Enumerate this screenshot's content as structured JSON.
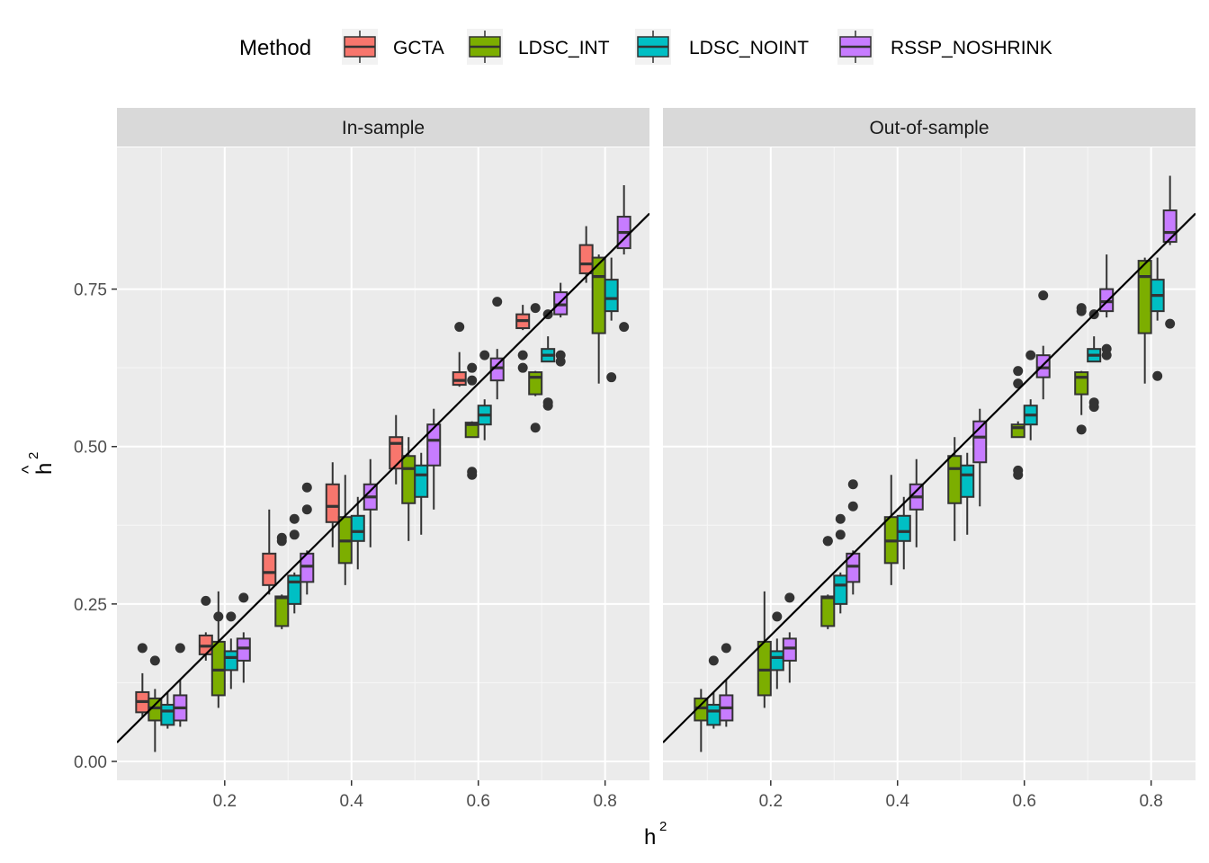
{
  "chart_data": {
    "type": "box",
    "legend": {
      "title": "Method",
      "position": "top",
      "entries": [
        {
          "label": "GCTA",
          "color": "#F8766D"
        },
        {
          "label": "LDSC_INT",
          "color": "#7CAE00"
        },
        {
          "label": "LDSC_NOINT",
          "color": "#00BFC4"
        },
        {
          "label": "RSSP_NOSHRINK",
          "color": "#C77CFF"
        }
      ]
    },
    "xlabel": "h",
    "xlabel_sup": "2",
    "ylabel": "h",
    "ylabel_sup": "2",
    "ylabel_hat": "^",
    "xlim": [
      0.03,
      0.87
    ],
    "ylim": [
      -0.03,
      0.975
    ],
    "x_ticks": [
      0.2,
      0.4,
      0.6,
      0.8
    ],
    "x_tick_labels": [
      "0.2",
      "0.4",
      "0.6",
      "0.8"
    ],
    "y_ticks": [
      0.0,
      0.25,
      0.5,
      0.75
    ],
    "y_tick_labels": [
      "0.00",
      "0.25",
      "0.50",
      "0.75"
    ],
    "reference_line": {
      "intercept": 0,
      "slope": 1
    },
    "grid": true,
    "panels": [
      {
        "title": "In-sample",
        "series": [
          {
            "name": "GCTA",
            "boxes": [
              {
                "x": 0.1,
                "min": 0.07,
                "q1": 0.078,
                "median": 0.095,
                "q3": 0.11,
                "max": 0.14,
                "outliers": [
                  0.18
                ]
              },
              {
                "x": 0.2,
                "min": 0.16,
                "q1": 0.17,
                "median": 0.183,
                "q3": 0.2,
                "max": 0.205,
                "outliers": [
                  0.255
                ]
              },
              {
                "x": 0.3,
                "min": 0.265,
                "q1": 0.28,
                "median": 0.3,
                "q3": 0.33,
                "max": 0.4,
                "outliers": []
              },
              {
                "x": 0.4,
                "min": 0.34,
                "q1": 0.38,
                "median": 0.405,
                "q3": 0.44,
                "max": 0.475,
                "outliers": []
              },
              {
                "x": 0.5,
                "min": 0.44,
                "q1": 0.465,
                "median": 0.505,
                "q3": 0.515,
                "max": 0.55,
                "outliers": []
              },
              {
                "x": 0.6,
                "min": 0.595,
                "q1": 0.598,
                "median": 0.605,
                "q3": 0.618,
                "max": 0.65,
                "outliers": [
                  0.69
                ]
              },
              {
                "x": 0.7,
                "min": 0.685,
                "q1": 0.688,
                "median": 0.7,
                "q3": 0.71,
                "max": 0.725,
                "outliers": [
                  0.645,
                  0.625
                ]
              },
              {
                "x": 0.8,
                "min": 0.76,
                "q1": 0.775,
                "median": 0.79,
                "q3": 0.82,
                "max": 0.85,
                "outliers": []
              }
            ]
          },
          {
            "name": "LDSC_INT",
            "boxes": [
              {
                "x": 0.1,
                "min": 0.015,
                "q1": 0.065,
                "median": 0.085,
                "q3": 0.1,
                "max": 0.115,
                "outliers": [
                  0.16
                ]
              },
              {
                "x": 0.2,
                "min": 0.085,
                "q1": 0.105,
                "median": 0.145,
                "q3": 0.19,
                "max": 0.27,
                "outliers": [
                  0.23
                ]
              },
              {
                "x": 0.3,
                "min": 0.21,
                "q1": 0.215,
                "median": 0.26,
                "q3": 0.262,
                "max": 0.265,
                "outliers": [
                  0.35,
                  0.355
                ]
              },
              {
                "x": 0.4,
                "min": 0.28,
                "q1": 0.315,
                "median": 0.35,
                "q3": 0.388,
                "max": 0.455,
                "outliers": []
              },
              {
                "x": 0.5,
                "min": 0.35,
                "q1": 0.41,
                "median": 0.465,
                "q3": 0.485,
                "max": 0.515,
                "outliers": []
              },
              {
                "x": 0.6,
                "min": 0.515,
                "q1": 0.515,
                "median": 0.535,
                "q3": 0.538,
                "max": 0.54,
                "outliers": [
                  0.455,
                  0.46,
                  0.625,
                  0.605
                ]
              },
              {
                "x": 0.7,
                "min": 0.58,
                "q1": 0.583,
                "median": 0.61,
                "q3": 0.618,
                "max": 0.62,
                "outliers": [
                  0.53,
                  0.72
                ]
              },
              {
                "x": 0.8,
                "min": 0.6,
                "q1": 0.68,
                "median": 0.77,
                "q3": 0.8,
                "max": 0.805,
                "outliers": []
              }
            ]
          },
          {
            "name": "LDSC_NOINT",
            "boxes": [
              {
                "x": 0.1,
                "min": 0.052,
                "q1": 0.058,
                "median": 0.08,
                "q3": 0.09,
                "max": 0.11,
                "outliers": []
              },
              {
                "x": 0.2,
                "min": 0.115,
                "q1": 0.145,
                "median": 0.165,
                "q3": 0.175,
                "max": 0.195,
                "outliers": [
                  0.23
                ]
              },
              {
                "x": 0.3,
                "min": 0.235,
                "q1": 0.25,
                "median": 0.285,
                "q3": 0.295,
                "max": 0.3,
                "outliers": [
                  0.36,
                  0.385
                ]
              },
              {
                "x": 0.4,
                "min": 0.305,
                "q1": 0.35,
                "median": 0.365,
                "q3": 0.39,
                "max": 0.42,
                "outliers": []
              },
              {
                "x": 0.5,
                "min": 0.36,
                "q1": 0.42,
                "median": 0.455,
                "q3": 0.47,
                "max": 0.49,
                "outliers": []
              },
              {
                "x": 0.6,
                "min": 0.51,
                "q1": 0.535,
                "median": 0.55,
                "q3": 0.565,
                "max": 0.575,
                "outliers": [
                  0.645
                ]
              },
              {
                "x": 0.7,
                "min": 0.635,
                "q1": 0.635,
                "median": 0.645,
                "q3": 0.655,
                "max": 0.675,
                "outliers": [
                  0.565,
                  0.57,
                  0.71
                ]
              },
              {
                "x": 0.8,
                "min": 0.7,
                "q1": 0.715,
                "median": 0.735,
                "q3": 0.765,
                "max": 0.8,
                "outliers": [
                  0.61
                ]
              }
            ]
          },
          {
            "name": "RSSP_NOSHRINK",
            "boxes": [
              {
                "x": 0.1,
                "min": 0.055,
                "q1": 0.065,
                "median": 0.085,
                "q3": 0.105,
                "max": 0.13,
                "outliers": [
                  0.18
                ]
              },
              {
                "x": 0.2,
                "min": 0.125,
                "q1": 0.16,
                "median": 0.18,
                "q3": 0.195,
                "max": 0.205,
                "outliers": [
                  0.26
                ]
              },
              {
                "x": 0.3,
                "min": 0.265,
                "q1": 0.285,
                "median": 0.31,
                "q3": 0.33,
                "max": 0.335,
                "outliers": [
                  0.4,
                  0.435
                ]
              },
              {
                "x": 0.4,
                "min": 0.34,
                "q1": 0.4,
                "median": 0.42,
                "q3": 0.44,
                "max": 0.48,
                "outliers": []
              },
              {
                "x": 0.5,
                "min": 0.4,
                "q1": 0.47,
                "median": 0.51,
                "q3": 0.535,
                "max": 0.56,
                "outliers": []
              },
              {
                "x": 0.6,
                "min": 0.575,
                "q1": 0.605,
                "median": 0.625,
                "q3": 0.64,
                "max": 0.655,
                "outliers": [
                  0.73
                ]
              },
              {
                "x": 0.7,
                "min": 0.705,
                "q1": 0.71,
                "median": 0.725,
                "q3": 0.745,
                "max": 0.76,
                "outliers": [
                  0.635,
                  0.645
                ]
              },
              {
                "x": 0.8,
                "min": 0.805,
                "q1": 0.815,
                "median": 0.84,
                "q3": 0.865,
                "max": 0.915,
                "outliers": [
                  0.69
                ]
              }
            ]
          }
        ]
      },
      {
        "title": "Out-of-sample",
        "series": [
          {
            "name": "LDSC_INT",
            "boxes": [
              {
                "x": 0.1,
                "min": 0.015,
                "q1": 0.065,
                "median": 0.085,
                "q3": 0.1,
                "max": 0.115,
                "outliers": []
              },
              {
                "x": 0.2,
                "min": 0.085,
                "q1": 0.105,
                "median": 0.145,
                "q3": 0.19,
                "max": 0.27,
                "outliers": []
              },
              {
                "x": 0.3,
                "min": 0.21,
                "q1": 0.215,
                "median": 0.26,
                "q3": 0.262,
                "max": 0.265,
                "outliers": [
                  0.35,
                  0.35
                ]
              },
              {
                "x": 0.4,
                "min": 0.28,
                "q1": 0.315,
                "median": 0.35,
                "q3": 0.388,
                "max": 0.455,
                "outliers": []
              },
              {
                "x": 0.5,
                "min": 0.35,
                "q1": 0.41,
                "median": 0.465,
                "q3": 0.485,
                "max": 0.515,
                "outliers": []
              },
              {
                "x": 0.6,
                "min": 0.515,
                "q1": 0.515,
                "median": 0.53,
                "q3": 0.535,
                "max": 0.54,
                "outliers": [
                  0.455,
                  0.462,
                  0.6,
                  0.62
                ]
              },
              {
                "x": 0.7,
                "min": 0.55,
                "q1": 0.583,
                "median": 0.61,
                "q3": 0.618,
                "max": 0.62,
                "outliers": [
                  0.527,
                  0.72,
                  0.715
                ]
              },
              {
                "x": 0.8,
                "min": 0.6,
                "q1": 0.68,
                "median": 0.77,
                "q3": 0.795,
                "max": 0.8,
                "outliers": []
              }
            ]
          },
          {
            "name": "LDSC_NOINT",
            "boxes": [
              {
                "x": 0.1,
                "min": 0.052,
                "q1": 0.058,
                "median": 0.08,
                "q3": 0.09,
                "max": 0.11,
                "outliers": [
                  0.16
                ]
              },
              {
                "x": 0.2,
                "min": 0.115,
                "q1": 0.145,
                "median": 0.165,
                "q3": 0.175,
                "max": 0.195,
                "outliers": [
                  0.23
                ]
              },
              {
                "x": 0.3,
                "min": 0.235,
                "q1": 0.25,
                "median": 0.28,
                "q3": 0.295,
                "max": 0.3,
                "outliers": [
                  0.36,
                  0.385
                ]
              },
              {
                "x": 0.4,
                "min": 0.305,
                "q1": 0.35,
                "median": 0.365,
                "q3": 0.39,
                "max": 0.42,
                "outliers": []
              },
              {
                "x": 0.5,
                "min": 0.36,
                "q1": 0.42,
                "median": 0.455,
                "q3": 0.47,
                "max": 0.49,
                "outliers": []
              },
              {
                "x": 0.6,
                "min": 0.51,
                "q1": 0.535,
                "median": 0.55,
                "q3": 0.565,
                "max": 0.575,
                "outliers": [
                  0.645
                ]
              },
              {
                "x": 0.7,
                "min": 0.635,
                "q1": 0.635,
                "median": 0.645,
                "q3": 0.655,
                "max": 0.675,
                "outliers": [
                  0.563,
                  0.57,
                  0.71
                ]
              },
              {
                "x": 0.8,
                "min": 0.7,
                "q1": 0.715,
                "median": 0.74,
                "q3": 0.765,
                "max": 0.8,
                "outliers": [
                  0.612
                ]
              }
            ]
          },
          {
            "name": "RSSP_NOSHRINK",
            "boxes": [
              {
                "x": 0.1,
                "min": 0.055,
                "q1": 0.065,
                "median": 0.085,
                "q3": 0.105,
                "max": 0.13,
                "outliers": [
                  0.18
                ]
              },
              {
                "x": 0.2,
                "min": 0.125,
                "q1": 0.16,
                "median": 0.18,
                "q3": 0.195,
                "max": 0.205,
                "outliers": [
                  0.26
                ]
              },
              {
                "x": 0.3,
                "min": 0.265,
                "q1": 0.285,
                "median": 0.31,
                "q3": 0.33,
                "max": 0.335,
                "outliers": [
                  0.405,
                  0.44
                ]
              },
              {
                "x": 0.4,
                "min": 0.34,
                "q1": 0.4,
                "median": 0.42,
                "q3": 0.44,
                "max": 0.48,
                "outliers": []
              },
              {
                "x": 0.5,
                "min": 0.405,
                "q1": 0.475,
                "median": 0.515,
                "q3": 0.54,
                "max": 0.56,
                "outliers": []
              },
              {
                "x": 0.6,
                "min": 0.575,
                "q1": 0.61,
                "median": 0.625,
                "q3": 0.645,
                "max": 0.66,
                "outliers": [
                  0.74
                ]
              },
              {
                "x": 0.7,
                "min": 0.705,
                "q1": 0.715,
                "median": 0.73,
                "q3": 0.75,
                "max": 0.805,
                "outliers": [
                  0.645,
                  0.655
                ]
              },
              {
                "x": 0.8,
                "min": 0.82,
                "q1": 0.825,
                "median": 0.84,
                "q3": 0.875,
                "max": 0.93,
                "outliers": [
                  0.695
                ]
              }
            ]
          }
        ]
      }
    ]
  }
}
